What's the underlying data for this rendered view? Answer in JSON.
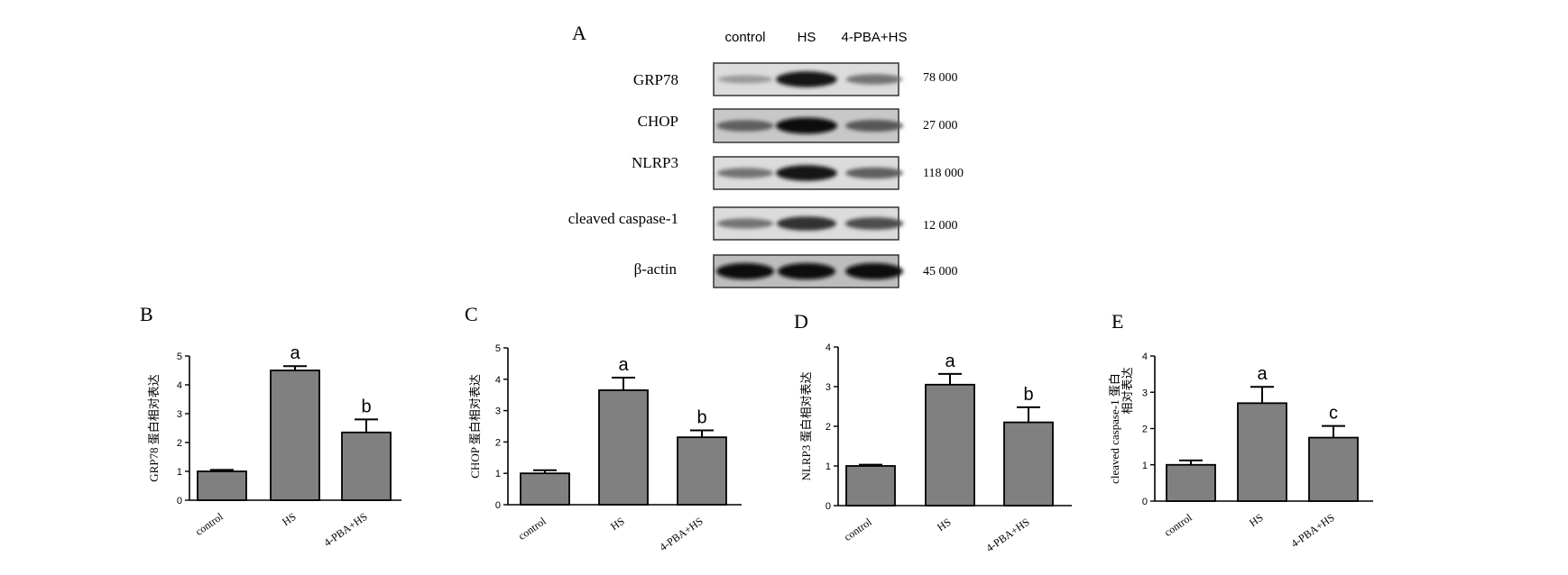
{
  "blot": {
    "panel_letter": "A",
    "lanes": [
      "control",
      "HS",
      "4-PBA+HS"
    ],
    "rows": [
      {
        "protein": "GRP78",
        "mw": "78 000",
        "intensity": [
          0.25,
          0.95,
          0.45
        ],
        "tone": "light"
      },
      {
        "protein": "CHOP",
        "mw": "27 000",
        "intensity": [
          0.55,
          1.0,
          0.6
        ],
        "tone": "mid"
      },
      {
        "protein": "NLRP3",
        "mw": "118 000",
        "intensity": [
          0.45,
          0.95,
          0.55
        ],
        "tone": "light"
      },
      {
        "protein": "cleaved caspase-1",
        "mw": "12 000",
        "intensity": [
          0.45,
          0.8,
          0.65
        ],
        "tone": "light"
      },
      {
        "protein": "β-actin",
        "mw": "45 000",
        "intensity": [
          1.0,
          1.0,
          1.0
        ],
        "tone": "dark"
      }
    ]
  },
  "chart_data": [
    {
      "panel": "B",
      "type": "bar",
      "categories": [
        "control",
        "HS",
        "4-PBA+HS"
      ],
      "values": [
        1.0,
        4.5,
        2.35
      ],
      "errors": [
        0.05,
        0.15,
        0.45
      ],
      "significance": [
        "",
        "a",
        "b"
      ],
      "ylabel": "GRP78 蛋白相对表达",
      "ylim": [
        0,
        5
      ],
      "yticks": [
        "0",
        "1",
        "2",
        "3",
        "4",
        "5"
      ],
      "bar_color": "#808080"
    },
    {
      "panel": "C",
      "type": "bar",
      "categories": [
        "control",
        "HS",
        "4-PBA+HS"
      ],
      "values": [
        1.0,
        3.65,
        2.15
      ],
      "errors": [
        0.1,
        0.4,
        0.22
      ],
      "significance": [
        "",
        "a",
        "b"
      ],
      "ylabel": "CHOP 蛋白相对表达",
      "ylim": [
        0,
        5
      ],
      "yticks": [
        "0",
        "1",
        "2",
        "3",
        "4",
        "5"
      ],
      "bar_color": "#808080"
    },
    {
      "panel": "D",
      "type": "bar",
      "categories": [
        "control",
        "HS",
        "4-PBA+HS"
      ],
      "values": [
        1.0,
        3.05,
        2.1
      ],
      "errors": [
        0.03,
        0.27,
        0.38
      ],
      "significance": [
        "",
        "a",
        "b"
      ],
      "ylabel": "NLRP3 蛋白相对表达",
      "ylim": [
        0,
        4
      ],
      "yticks": [
        "0",
        "1",
        "2",
        "3",
        "4"
      ],
      "bar_color": "#808080"
    },
    {
      "panel": "E",
      "type": "bar",
      "categories": [
        "control",
        "HS",
        "4-PBA+HS"
      ],
      "values": [
        1.0,
        2.7,
        1.75
      ],
      "errors": [
        0.12,
        0.45,
        0.32
      ],
      "significance": [
        "",
        "a",
        "c"
      ],
      "ylabel": "cleaved caspase-1 蛋白",
      "ylabel_line2": "相对表达",
      "ylim": [
        0,
        4
      ],
      "yticks": [
        "0",
        "1",
        "2",
        "3",
        "4"
      ],
      "bar_color": "#808080"
    }
  ]
}
